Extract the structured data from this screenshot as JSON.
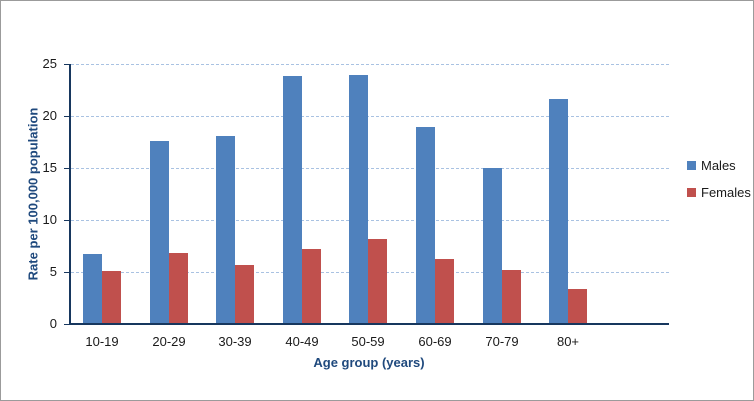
{
  "window": {
    "background_color": "#FFFFFF",
    "border_color": "#9B9B9B"
  },
  "chart_data": {
    "type": "bar",
    "title": "",
    "categories": [
      "10-19",
      "20-29",
      "30-39",
      "40-49",
      "50-59",
      "60-69",
      "70-79",
      "80+"
    ],
    "series": [
      {
        "name": "Males",
        "color": "#4F81BD",
        "values": [
          6.7,
          17.6,
          18.1,
          23.9,
          24.0,
          19.0,
          15.0,
          21.7
        ]
      },
      {
        "name": "Females",
        "color": "#C0504D",
        "values": [
          5.1,
          6.8,
          5.7,
          7.2,
          8.2,
          6.3,
          5.2,
          3.4
        ]
      }
    ],
    "xlabel": "Age group (years)",
    "ylabel": "Rate per 100,000 population",
    "ylim": [
      0,
      25
    ],
    "yticks": [
      0,
      5,
      10,
      15,
      20,
      25
    ],
    "grid": "horizontal-dashed",
    "gridline_color": "#A9C2E2",
    "axis_color": "#17375E",
    "axis_title_color": "#1F497D",
    "tick_label_color": "#1A1A1A",
    "legend_position": "right",
    "legend_entries": [
      "Males",
      "Females"
    ]
  }
}
